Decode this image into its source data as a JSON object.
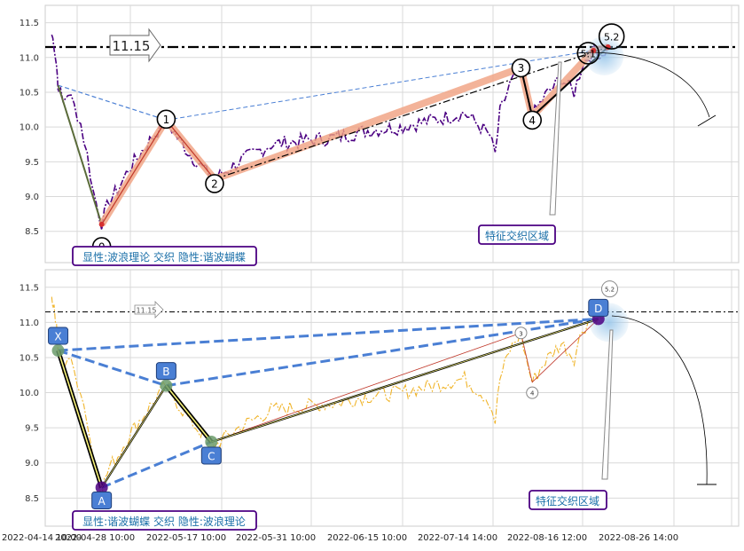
{
  "chart_data": [
    {
      "type": "line",
      "panel": "top",
      "yticks": [
        "11.5",
        "11.0",
        "10.5",
        "10.0",
        "9.5",
        "9.0",
        "8.5"
      ],
      "ylim": [
        8.05,
        11.75
      ],
      "grid": true,
      "price_color": "#4b0082",
      "threshold": {
        "value": 11.15,
        "label": "11.15"
      },
      "wave_points": [
        {
          "label": "0",
          "x": 0.5,
          "y": 8.6
        },
        {
          "label": "1",
          "x": 4.5,
          "y": 10.1
        },
        {
          "label": "2",
          "x": 7.5,
          "y": 9.25
        },
        {
          "label": "3",
          "x": 26.5,
          "y": 10.85
        },
        {
          "label": "4",
          "x": 27.2,
          "y": 10.15
        },
        {
          "label": "5.1",
          "x": 31.0,
          "y": 11.1
        },
        {
          "label": "5.2",
          "x": 31.9,
          "y": 11.15
        }
      ],
      "zone_label": "特征交织区域",
      "caption": "显性:波浪理论 交织 隐性:谐波蝴蝶"
    },
    {
      "type": "line",
      "panel": "bottom",
      "yticks": [
        "11.5",
        "11.0",
        "10.5",
        "10.0",
        "9.5",
        "9.0",
        "8.5"
      ],
      "ylim": [
        8.1,
        11.75
      ],
      "grid": true,
      "price_color": "#f0b429",
      "threshold": {
        "value": 11.15,
        "label": "11.15"
      },
      "harmonic_points": [
        {
          "label": "X",
          "x": -2.2,
          "y": 10.6
        },
        {
          "label": "A",
          "x": 0.5,
          "y": 8.65
        },
        {
          "label": "B",
          "x": 4.5,
          "y": 10.1
        },
        {
          "label": "C",
          "x": 7.3,
          "y": 9.3
        },
        {
          "label": "D",
          "x": 31.3,
          "y": 11.05
        }
      ],
      "wave_points": [
        {
          "label": "3",
          "x": 26.5,
          "y": 10.85
        },
        {
          "label": "4",
          "x": 27.2,
          "y": 10.15
        },
        {
          "label": "5.2",
          "x": 32.0,
          "y": 11.35
        }
      ],
      "zone_label": "特征交织区域",
      "caption": "显性:谐波蝴蝶 交织 隐性:波浪理论"
    }
  ],
  "x_axis": {
    "tick_labels": [
      "2022-04-14 10:00",
      "2022-04-28 10:00",
      "2022-05-17 10:00",
      "2022-05-31 10:00",
      "2022-06-15 10:00",
      "2022-07-14 14:00",
      "2022-08-16 12:00",
      "2022-08-26 14:00"
    ]
  }
}
